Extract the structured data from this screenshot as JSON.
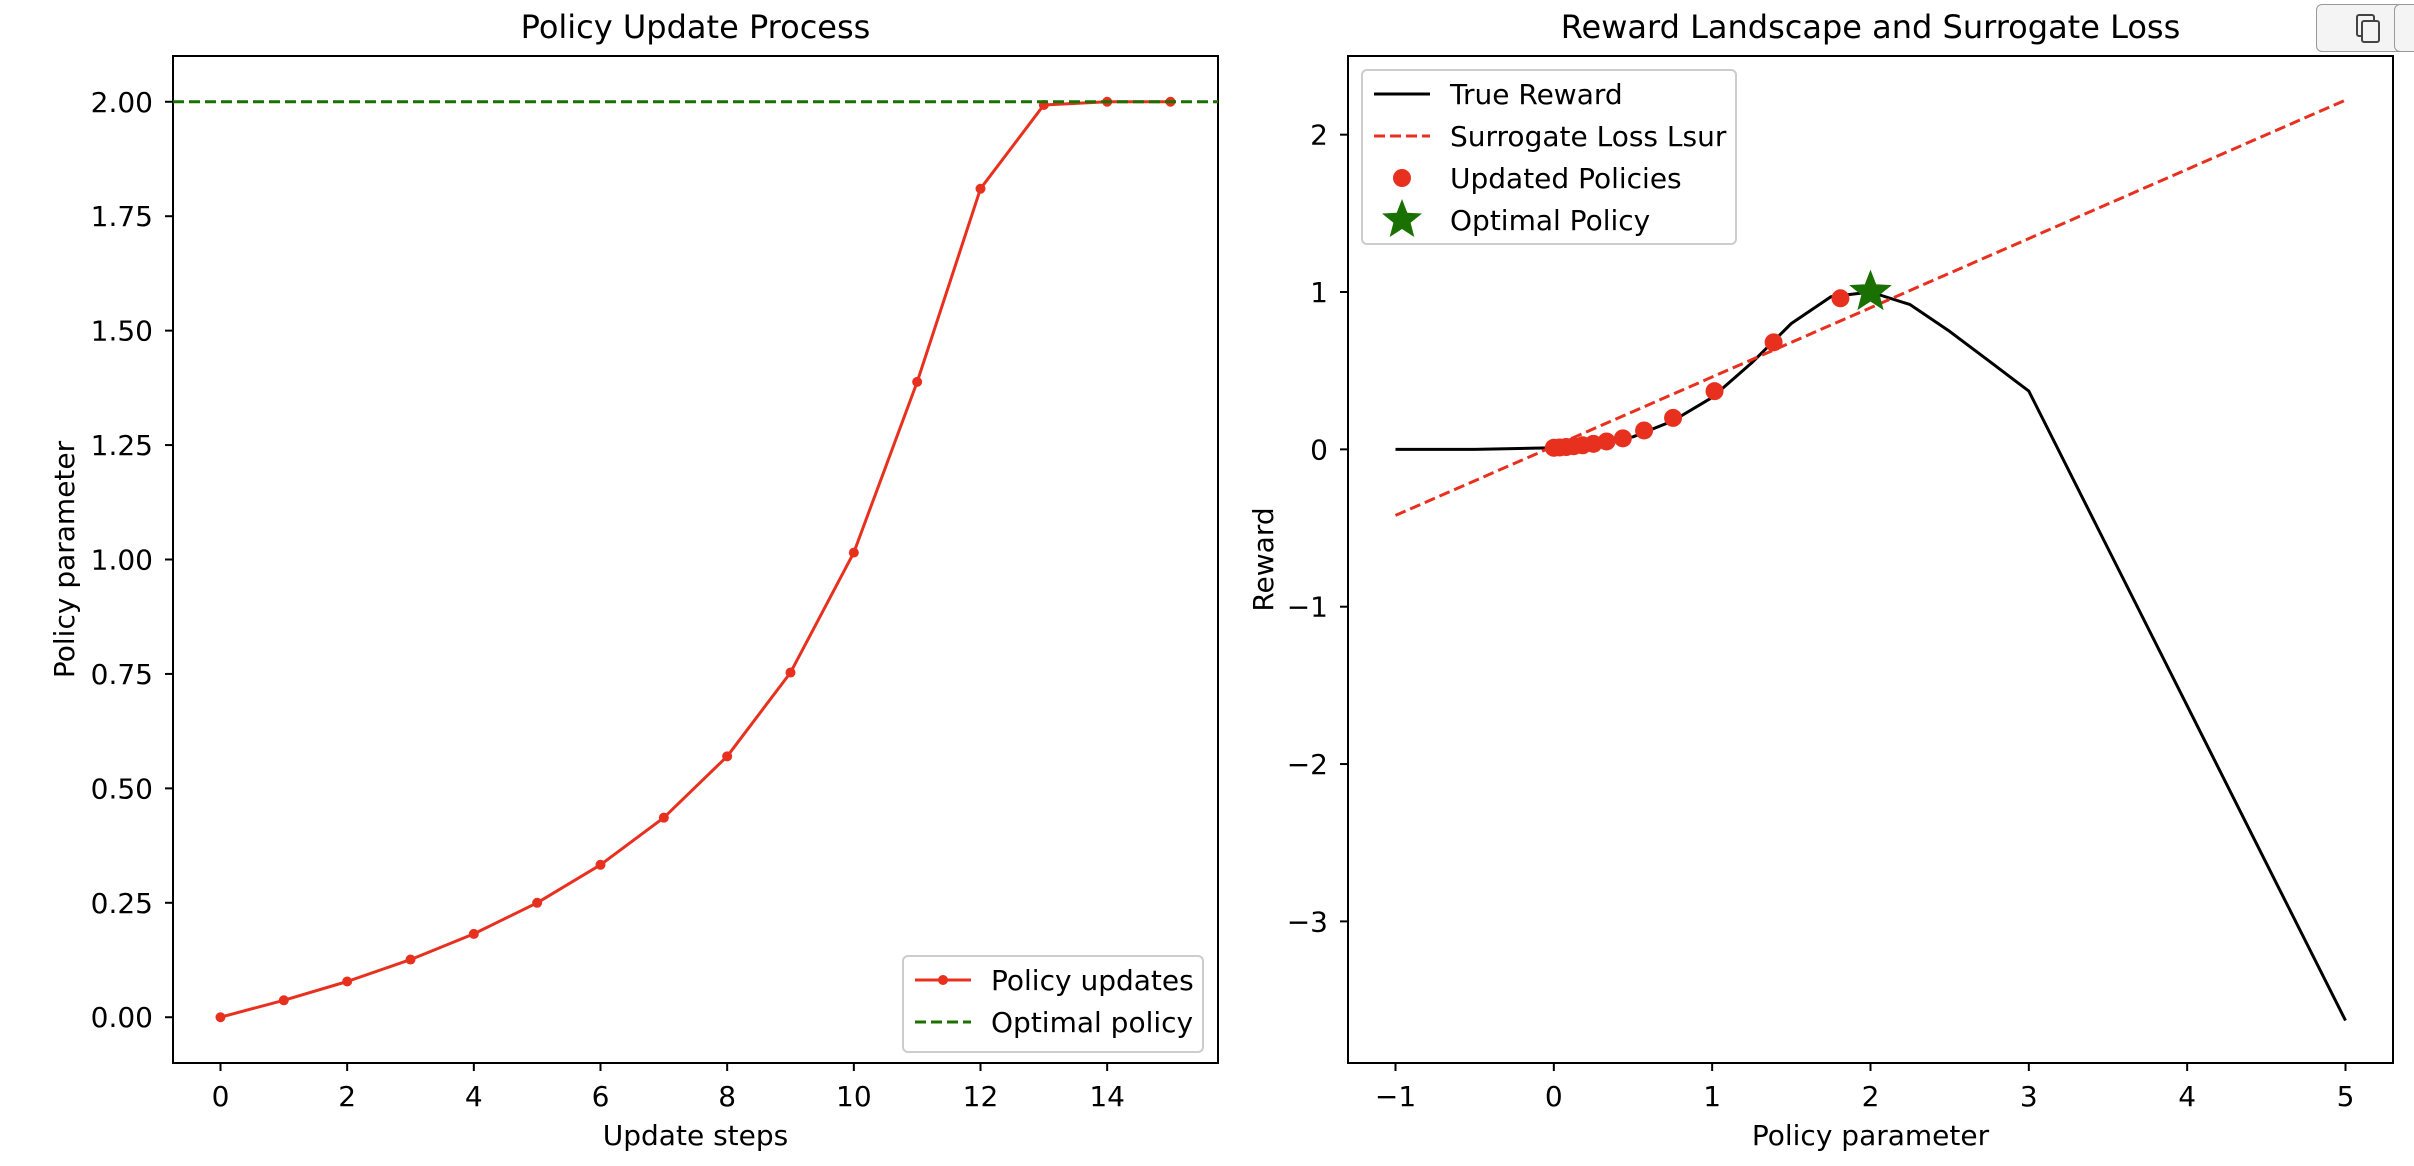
{
  "toolbar": {
    "copy_icon": "copy-icon",
    "second_button_icon": "square-icon"
  },
  "chart_data": [
    {
      "type": "line",
      "title": "Policy Update Process",
      "xlabel": "Update steps",
      "ylabel": "Policy parameter",
      "xlim": [
        -0.75,
        15.75
      ],
      "ylim": [
        -0.1,
        2.1
      ],
      "xticks": [
        0,
        2,
        4,
        6,
        8,
        10,
        12,
        14
      ],
      "yticks": [
        0.0,
        0.25,
        0.5,
        0.75,
        1.0,
        1.25,
        1.5,
        1.75,
        2.0
      ],
      "ytick_labels": [
        "0.00",
        "0.25",
        "0.50",
        "0.75",
        "1.00",
        "1.25",
        "1.50",
        "1.75",
        "2.00"
      ],
      "grid": false,
      "legend_position": "lower right",
      "series": [
        {
          "name": "Policy updates",
          "style": "solid-with-markers",
          "color": "#e8301f",
          "x": [
            0,
            1,
            2,
            3,
            4,
            5,
            6,
            7,
            8,
            9,
            10,
            11,
            12,
            13,
            14,
            15
          ],
          "y": [
            0.0,
            0.037,
            0.078,
            0.126,
            0.182,
            0.25,
            0.333,
            0.436,
            0.57,
            0.753,
            1.015,
            1.388,
            1.81,
            1.993,
            2.0,
            2.0
          ]
        },
        {
          "name": "Optimal policy",
          "style": "dashed-hline",
          "color": "#1a7000",
          "y": 2.0
        }
      ]
    },
    {
      "type": "line",
      "title": "Reward Landscape and Surrogate Loss",
      "xlabel": "Policy parameter",
      "ylabel": "Reward",
      "xlim": [
        -1.3,
        5.3
      ],
      "ylim": [
        -3.9,
        2.5
      ],
      "xticks": [
        -1,
        0,
        1,
        2,
        3,
        4,
        5
      ],
      "yticks": [
        -3,
        -2,
        -1,
        0,
        1,
        2
      ],
      "grid": false,
      "legend_position": "upper left",
      "series": [
        {
          "name": "True Reward",
          "style": "solid",
          "color": "#000000",
          "x": [
            -1.0,
            -0.5,
            0.0,
            0.25,
            0.5,
            0.75,
            1.0,
            1.25,
            1.5,
            1.75,
            2.0,
            2.25,
            2.5,
            2.75,
            3.0,
            3.5,
            4.0,
            4.5,
            5.0
          ],
          "y": [
            0.0,
            0.0,
            0.01,
            0.03,
            0.08,
            0.18,
            0.33,
            0.55,
            0.8,
            0.97,
            1.0,
            0.92,
            0.75,
            0.56,
            0.37,
            -0.63,
            -1.63,
            -2.63,
            -3.63
          ]
        },
        {
          "name": "Surrogate Loss Lsur",
          "style": "dashed",
          "color": "#e8301f",
          "x": [
            -1.0,
            5.0
          ],
          "y": [
            -0.42,
            2.22
          ]
        },
        {
          "name": "Updated Policies",
          "style": "markers",
          "color": "#e8301f",
          "x": [
            0.0,
            0.037,
            0.078,
            0.126,
            0.182,
            0.25,
            0.333,
            0.436,
            0.57,
            0.753,
            1.015,
            1.388,
            1.81
          ],
          "y": [
            0.01,
            0.012,
            0.015,
            0.02,
            0.026,
            0.035,
            0.05,
            0.07,
            0.12,
            0.2,
            0.37,
            0.68,
            0.96
          ]
        },
        {
          "name": "Optimal Policy",
          "style": "star-marker",
          "color": "#1a7000",
          "x": [
            2.0
          ],
          "y": [
            1.0
          ]
        }
      ]
    }
  ]
}
